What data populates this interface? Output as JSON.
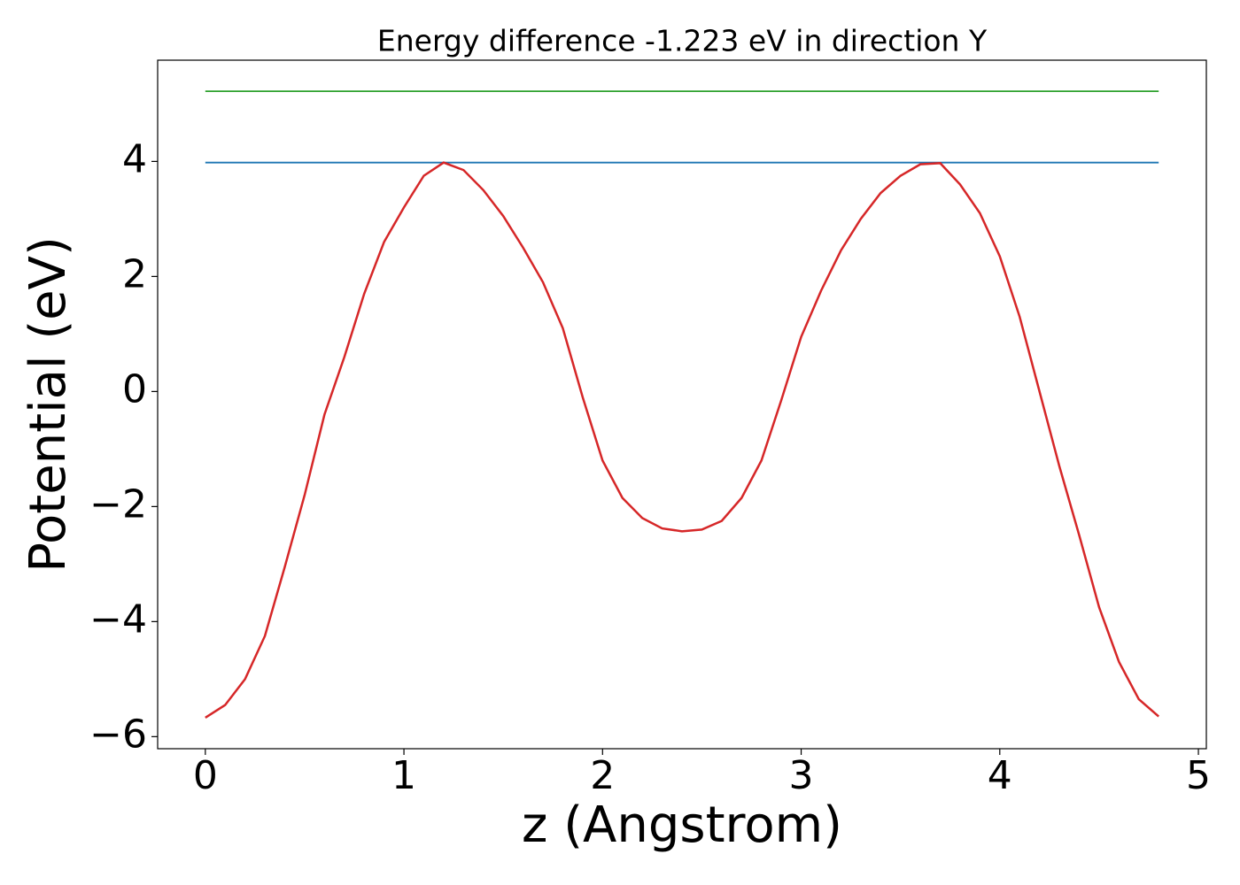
{
  "chart_data": {
    "type": "line",
    "title": "Energy difference -1.223 eV in direction Y",
    "xlabel": "z (Angstrom)",
    "ylabel": "Potential (eV)",
    "xlim": [
      -0.24,
      5.04
    ],
    "ylim": [
      -6.21,
      5.76
    ],
    "xticks": [
      0,
      1,
      2,
      3,
      4,
      5
    ],
    "yticks": [
      {
        "value": -6,
        "label": "−6"
      },
      {
        "value": -4,
        "label": "−4"
      },
      {
        "value": -2,
        "label": "−2"
      },
      0,
      2,
      4
    ],
    "x": [
      0,
      0.1,
      0.2,
      0.3,
      0.4,
      0.5,
      0.6,
      0.7,
      0.8,
      0.9,
      1.0,
      1.1,
      1.2,
      1.3,
      1.4,
      1.5,
      1.6,
      1.7,
      1.8,
      1.9,
      2.0,
      2.1,
      2.2,
      2.3,
      2.4,
      2.5,
      2.6,
      2.7,
      2.8,
      2.9,
      3.0,
      3.1,
      3.2,
      3.3,
      3.4,
      3.5,
      3.6,
      3.7,
      3.8,
      3.9,
      4.0,
      4.1,
      4.2,
      4.3,
      4.4,
      4.5,
      4.6,
      4.7,
      4.8
    ],
    "series": [
      {
        "color": "#1f77b4",
        "values": [
          3.98,
          3.98,
          3.98,
          3.98,
          3.98,
          3.98,
          3.98,
          3.98,
          3.98,
          3.98,
          3.98,
          3.98,
          3.98,
          3.98,
          3.98,
          3.98,
          3.98,
          3.98,
          3.98,
          3.98,
          3.98,
          3.98,
          3.98,
          3.98,
          3.98,
          3.98,
          3.98,
          3.98,
          3.98,
          3.98,
          3.98,
          3.98,
          3.98,
          3.98,
          3.98,
          3.98,
          3.98,
          3.98,
          3.98,
          3.98,
          3.98,
          3.98,
          3.98,
          3.98,
          3.98,
          3.98,
          3.98,
          3.98,
          3.98
        ]
      },
      {
        "color": "#2ca02c",
        "values": [
          5.22,
          5.22,
          5.22,
          5.22,
          5.22,
          5.22,
          5.22,
          5.22,
          5.22,
          5.22,
          5.22,
          5.22,
          5.22,
          5.22,
          5.22,
          5.22,
          5.22,
          5.22,
          5.22,
          5.22,
          5.22,
          5.22,
          5.22,
          5.22,
          5.22,
          5.22,
          5.22,
          5.22,
          5.22,
          5.22,
          5.22,
          5.22,
          5.22,
          5.22,
          5.22,
          5.22,
          5.22,
          5.22,
          5.22,
          5.22,
          5.22,
          5.22,
          5.22,
          5.22,
          5.22,
          5.22,
          5.22,
          5.22,
          5.22
        ]
      },
      {
        "color": "#d62728",
        "values": [
          -5.67,
          -5.45,
          -5.0,
          -4.25,
          -3.05,
          -1.8,
          -0.4,
          0.6,
          1.7,
          2.6,
          3.2,
          3.75,
          3.98,
          3.85,
          3.5,
          3.05,
          2.5,
          1.9,
          1.1,
          -0.1,
          -1.2,
          -1.85,
          -2.2,
          -2.38,
          -2.43,
          -2.4,
          -2.25,
          -1.85,
          -1.2,
          -0.15,
          0.95,
          1.75,
          2.45,
          3.0,
          3.45,
          3.75,
          3.95,
          3.97,
          3.6,
          3.1,
          2.35,
          1.3,
          0.0,
          -1.3,
          -2.5,
          -3.75,
          -4.7,
          -5.35,
          -5.65
        ]
      }
    ]
  }
}
